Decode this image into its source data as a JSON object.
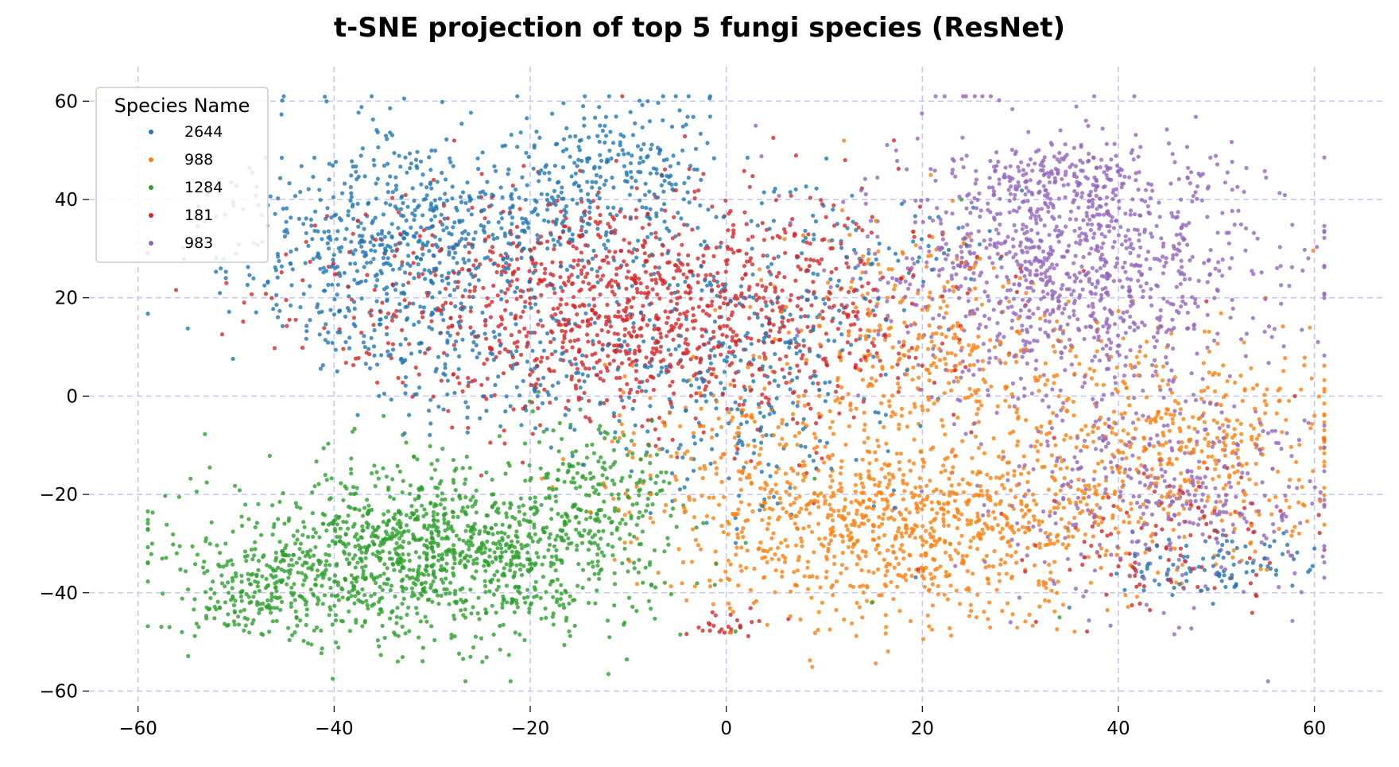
{
  "chart_data": {
    "type": "scatter",
    "title": "t-SNE projection of top 5 fungi species (ResNet)",
    "xlabel": "",
    "ylabel": "",
    "xlim": [
      -65,
      67
    ],
    "ylim": [
      -63,
      67
    ],
    "x_ticks": [
      -60,
      -40,
      -20,
      0,
      20,
      40,
      60
    ],
    "y_ticks": [
      -60,
      -40,
      -20,
      0,
      20,
      40,
      60
    ],
    "grid": true,
    "grid_style": "dashed",
    "grid_color": "#c8c8f5",
    "legend": {
      "title": "Species Name",
      "placement": "top-left"
    },
    "series": [
      {
        "name": "2644",
        "color": "#1f77b4",
        "regions": [
          {
            "cx": -35,
            "cy": 28,
            "sx": 8,
            "sy": 12,
            "n": 600
          },
          {
            "cx": -18,
            "cy": 38,
            "sx": 10,
            "sy": 8,
            "n": 350
          },
          {
            "cx": -10,
            "cy": 50,
            "sx": 4,
            "sy": 5,
            "n": 120
          },
          {
            "cx": 3,
            "cy": 5,
            "sx": 7,
            "sy": 14,
            "n": 300
          },
          {
            "cx": -20,
            "cy": 5,
            "sx": 8,
            "sy": 8,
            "n": 150
          },
          {
            "cx": 50,
            "cy": -35,
            "sx": 5,
            "sy": 3,
            "n": 90
          },
          {
            "cx": 15,
            "cy": 30,
            "sx": 8,
            "sy": 8,
            "n": 70
          }
        ],
        "points": [
          {
            "x": -50,
            "y": 29
          },
          {
            "x": -8,
            "y": 60
          },
          {
            "x": 60,
            "y": -31
          },
          {
            "x": 35,
            "y": -43
          }
        ]
      },
      {
        "name": "988",
        "color": "#ff7f0e",
        "regions": [
          {
            "cx": 18,
            "cy": -27,
            "sx": 11,
            "sy": 9,
            "n": 900
          },
          {
            "cx": 45,
            "cy": -10,
            "sx": 9,
            "sy": 12,
            "n": 500
          },
          {
            "cx": 20,
            "cy": 10,
            "sx": 8,
            "sy": 12,
            "n": 350
          },
          {
            "cx": 0,
            "cy": -10,
            "sx": 8,
            "sy": 8,
            "n": 150
          }
        ],
        "points": [
          {
            "x": 55,
            "y": 20
          },
          {
            "x": 60,
            "y": -4
          },
          {
            "x": 12,
            "y": 52
          }
        ]
      },
      {
        "name": "1284",
        "color": "#2ca02c",
        "regions": [
          {
            "cx": -30,
            "cy": -32,
            "sx": 11,
            "sy": 9,
            "n": 1300
          },
          {
            "cx": -47,
            "cy": -40,
            "sx": 5,
            "sy": 5,
            "n": 200
          },
          {
            "cx": -12,
            "cy": -20,
            "sx": 4,
            "sy": 8,
            "n": 150
          }
        ],
        "points": [
          {
            "x": -59,
            "y": -34
          },
          {
            "x": -22,
            "y": -58
          },
          {
            "x": 24,
            "y": 40
          },
          {
            "x": 34,
            "y": -45
          }
        ]
      },
      {
        "name": "181",
        "color": "#d62728",
        "regions": [
          {
            "cx": -10,
            "cy": 18,
            "sx": 15,
            "sy": 12,
            "n": 1300
          },
          {
            "cx": 45,
            "cy": -30,
            "sx": 8,
            "sy": 8,
            "n": 100
          },
          {
            "cx": 0,
            "cy": -47,
            "sx": 3,
            "sy": 2,
            "n": 25
          }
        ],
        "points": [
          {
            "x": -51,
            "y": 23
          },
          {
            "x": 58,
            "y": 0
          }
        ]
      },
      {
        "name": "983",
        "color": "#9467bd",
        "regions": [
          {
            "cx": 35,
            "cy": 25,
            "sx": 10,
            "sy": 13,
            "n": 1100
          },
          {
            "cx": 45,
            "cy": -20,
            "sx": 9,
            "sy": 12,
            "n": 400
          },
          {
            "cx": 34,
            "cy": 45,
            "sx": 5,
            "sy": 3,
            "n": 150
          }
        ],
        "points": [
          {
            "x": 3,
            "y": 55
          },
          {
            "x": 29,
            "y": -46
          }
        ]
      }
    ]
  }
}
